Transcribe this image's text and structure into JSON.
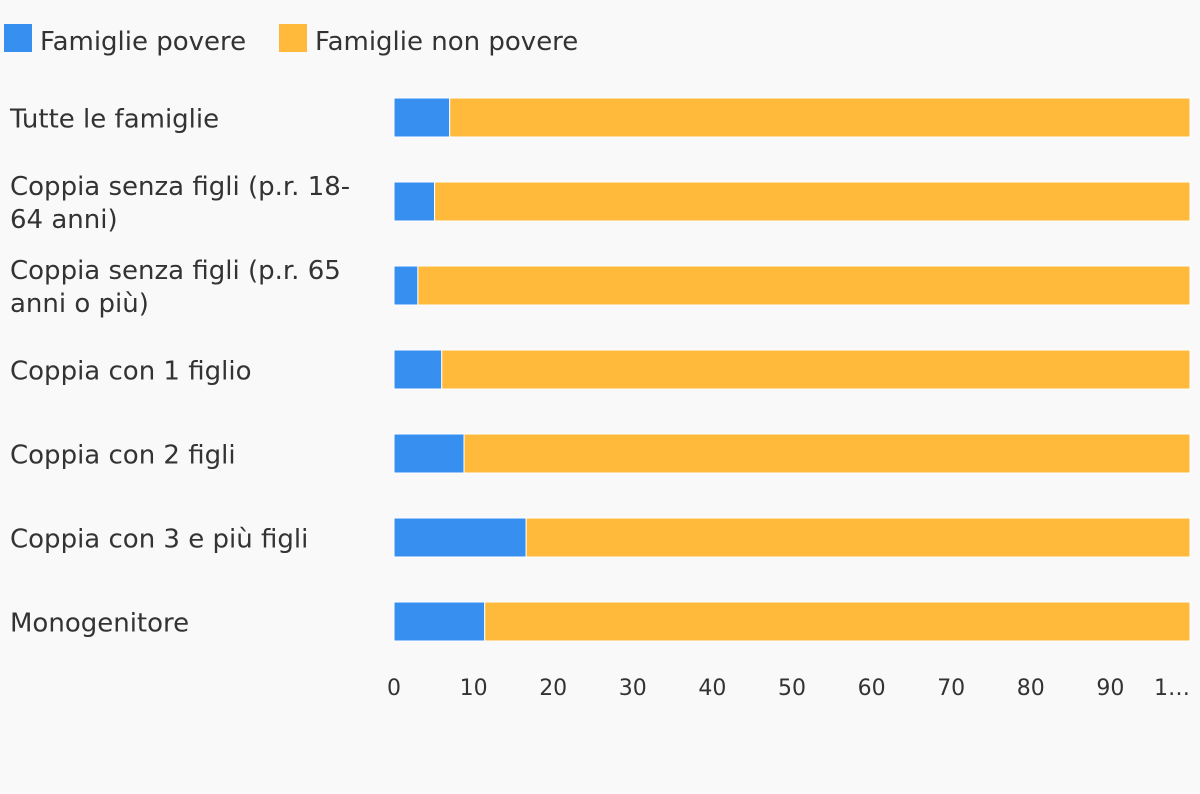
{
  "chart_data": {
    "type": "bar",
    "orientation": "horizontal",
    "stacked": true,
    "title": "",
    "xlabel": "",
    "ylabel": "",
    "xlim": [
      0,
      100
    ],
    "categories": [
      "Tutte le famiglie",
      "Coppia senza figli (p.r. 18-64 anni)",
      "Coppia senza figli (p.r. 65 anni o più)",
      "Coppia con 1 figlio",
      "Coppia con 2 figli",
      "Coppia con 3 e più figli",
      "Monogenitore"
    ],
    "category_lines": [
      [
        "Tutte le famiglie"
      ],
      [
        "Coppia senza figli (p.r. 18-",
        "64 anni)"
      ],
      [
        "Coppia senza figli (p.r. 65",
        "anni o più)"
      ],
      [
        "Coppia con 1 figlio"
      ],
      [
        "Coppia con 2 figli"
      ],
      [
        "Coppia con 3 e più figli"
      ],
      [
        "Monogenitore"
      ]
    ],
    "series": [
      {
        "name": "Famiglie povere",
        "color": "#3790f0",
        "values": [
          7.0,
          5.1,
          3.0,
          6.0,
          8.8,
          16.6,
          11.4
        ]
      },
      {
        "name": "Famiglie non povere",
        "color": "#ffb93b",
        "values": [
          93.0,
          94.9,
          97.0,
          94.0,
          91.2,
          83.4,
          88.6
        ]
      }
    ],
    "x_ticks": [
      "0",
      "10",
      "20",
      "30",
      "40",
      "50",
      "60",
      "70",
      "80",
      "90",
      "1…"
    ],
    "legend_position": "top-left",
    "grid": false
  }
}
